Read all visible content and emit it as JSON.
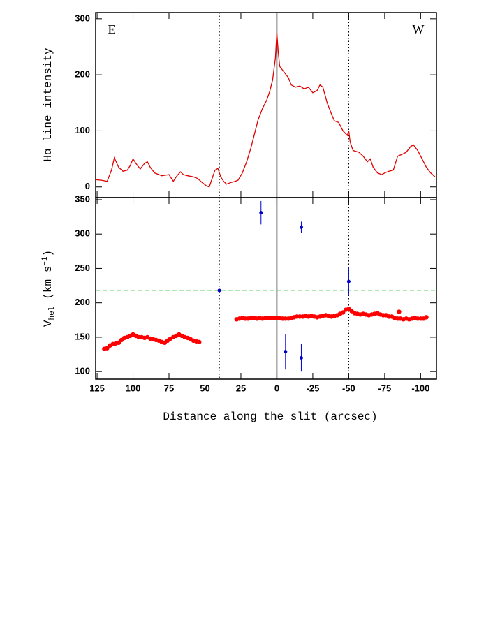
{
  "chart_data": [
    {
      "type": "line",
      "ylabel": "Hα line intensity",
      "annotations": [
        "E",
        "W"
      ],
      "xlim": [
        126,
        -111
      ],
      "ylim": [
        -19,
        311
      ],
      "xticks": [
        125,
        100,
        75,
        50,
        25,
        0,
        -25,
        -50,
        -75,
        -100
      ],
      "yticks": [
        0,
        100,
        200,
        300
      ],
      "vlines": [
        {
          "x": 40,
          "style": "dotted"
        },
        {
          "x": 0,
          "style": "solid"
        },
        {
          "x": -50,
          "style": "dotted"
        }
      ],
      "series": [
        {
          "color": "#e00000",
          "x": [
            126,
            122,
            118,
            115,
            113,
            110,
            107,
            104,
            102,
            100,
            98,
            95,
            92,
            90,
            88,
            85,
            80,
            75,
            72,
            70,
            67,
            65,
            62,
            58,
            55,
            52,
            49,
            47,
            45,
            43,
            41,
            39,
            37,
            35,
            32,
            29,
            27,
            24,
            21,
            18,
            15,
            13,
            10,
            7,
            5,
            3,
            1,
            0,
            -1,
            -2,
            -5,
            -8,
            -10,
            -13,
            -16,
            -19,
            -22,
            -25,
            -28,
            -30,
            -32,
            -35,
            -38,
            -40,
            -43,
            -46,
            -49,
            -50,
            -51,
            -53,
            -57,
            -60,
            -63,
            -65,
            -67,
            -70,
            -73,
            -75,
            -78,
            -81,
            -84,
            -87,
            -90,
            -93,
            -95,
            -98,
            -101,
            -104,
            -107,
            -110
          ],
          "values": [
            13,
            12,
            10,
            30,
            52,
            35,
            28,
            30,
            38,
            50,
            42,
            32,
            42,
            45,
            35,
            25,
            20,
            22,
            10,
            18,
            27,
            22,
            20,
            18,
            15,
            8,
            2,
            0,
            15,
            30,
            33,
            18,
            10,
            5,
            8,
            10,
            12,
            25,
            45,
            70,
            100,
            120,
            140,
            155,
            170,
            190,
            230,
            275,
            240,
            215,
            205,
            195,
            182,
            178,
            180,
            175,
            178,
            168,
            172,
            182,
            178,
            150,
            130,
            118,
            115,
            100,
            92,
            100,
            80,
            65,
            62,
            55,
            45,
            50,
            35,
            25,
            22,
            25,
            28,
            30,
            55,
            58,
            62,
            72,
            75,
            65,
            50,
            35,
            25,
            18
          ]
        }
      ]
    },
    {
      "type": "scatter",
      "ylabel": [
        "V",
        "hel",
        "(km s",
        "−1",
        ")"
      ],
      "xlabel": "Distance along the slit (arcsec)",
      "xlim": [
        126,
        -111
      ],
      "ylim": [
        89,
        353
      ],
      "xticks": [
        125,
        100,
        75,
        50,
        25,
        0,
        -25,
        -50,
        -75,
        -100
      ],
      "yticks": [
        100,
        150,
        200,
        250,
        300,
        350
      ],
      "vlines": [
        {
          "x": 40,
          "style": "dotted"
        },
        {
          "x": 0,
          "style": "solid"
        },
        {
          "x": -50,
          "style": "dotted"
        }
      ],
      "hline": {
        "y": 218,
        "color": "#66cc66"
      },
      "series": [
        {
          "color": "#ff0000",
          "size": 3.2,
          "x": [
            120,
            118,
            116,
            114,
            112,
            110,
            108,
            106,
            104,
            102,
            100,
            98,
            96,
            94,
            92,
            90,
            88,
            86,
            84,
            82,
            80,
            78,
            76,
            74,
            72,
            70,
            68,
            66,
            64,
            62,
            60,
            58,
            56,
            54,
            28,
            26,
            24,
            22,
            20,
            18,
            16,
            14,
            12,
            10,
            8,
            6,
            4,
            2,
            0,
            -2,
            -4,
            -6,
            -8,
            -10,
            -12,
            -14,
            -16,
            -18,
            -20,
            -22,
            -24,
            -26,
            -28,
            -30,
            -32,
            -34,
            -36,
            -38,
            -40,
            -42,
            -44,
            -46,
            -48,
            -50,
            -52,
            -54,
            -56,
            -58,
            -60,
            -62,
            -64,
            -66,
            -68,
            -70,
            -72,
            -74,
            -76,
            -78,
            -80,
            -82,
            -84,
            -85,
            -86,
            -88,
            -90,
            -92,
            -94,
            -96,
            -98,
            -100,
            -102,
            -104
          ],
          "values": [
            133,
            134,
            138,
            140,
            141,
            142,
            146,
            149,
            150,
            152,
            154,
            152,
            150,
            150,
            149,
            150,
            148,
            147,
            146,
            145,
            143,
            142,
            145,
            148,
            150,
            152,
            154,
            152,
            150,
            149,
            147,
            145,
            144,
            143,
            176,
            177,
            178,
            177,
            177,
            178,
            178,
            177,
            178,
            177,
            178,
            178,
            178,
            178,
            178,
            178,
            177,
            177,
            177,
            178,
            179,
            180,
            180,
            180,
            181,
            180,
            181,
            180,
            179,
            180,
            181,
            182,
            181,
            180,
            181,
            182,
            184,
            186,
            190,
            191,
            188,
            185,
            184,
            183,
            184,
            183,
            182,
            183,
            184,
            185,
            183,
            182,
            182,
            180,
            180,
            178,
            177,
            187,
            177,
            176,
            177,
            176,
            177,
            178,
            177,
            177,
            177,
            179
          ]
        },
        {
          "color": "#0000cc",
          "size": 2.5,
          "x": [
            40,
            11,
            -17,
            -50,
            -6,
            -17
          ],
          "values": [
            218,
            331,
            310,
            231,
            129,
            120
          ],
          "errors": [
            2,
            17,
            8,
            20,
            26,
            20
          ]
        }
      ]
    }
  ]
}
